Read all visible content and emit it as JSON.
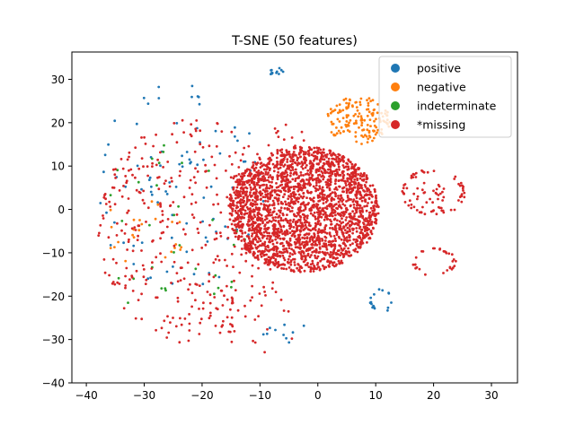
{
  "chart_data": {
    "type": "scatter",
    "title": "T-SNE (50 features)",
    "xlabel": "",
    "ylabel": "",
    "xlim": [
      -42.5,
      34.5
    ],
    "ylim": [
      -40,
      36.3
    ],
    "x_ticks": [
      -40,
      -30,
      -20,
      -10,
      0,
      10,
      20,
      30
    ],
    "y_ticks": [
      -40,
      -30,
      -20,
      -10,
      0,
      10,
      20,
      30
    ],
    "grid": false,
    "legend_position": "top-right",
    "colors": {
      "positive": "#1f77b4",
      "negative": "#ff7f0e",
      "indeterminate": "#2ca02c",
      "missing": "#d62728"
    },
    "series": [
      {
        "name": "positive",
        "color_key": "positive",
        "regions": [
          {
            "shape": "scatter",
            "cx": -24,
            "cy": 5,
            "rx": 15,
            "ry": 24,
            "n": 90
          },
          {
            "shape": "scatter",
            "cx": -6,
            "cy": -28,
            "rx": 4,
            "ry": 3,
            "n": 10
          },
          {
            "shape": "ring",
            "cx": 11,
            "cy": -21,
            "rx": 1.8,
            "ry": 2.5,
            "n": 16
          },
          {
            "shape": "scatter",
            "cx": -7,
            "cy": 32,
            "rx": 2,
            "ry": 1,
            "n": 12
          }
        ]
      },
      {
        "name": "negative",
        "color_key": "negative",
        "regions": [
          {
            "shape": "disk",
            "cx": 7,
            "cy": 20.5,
            "rx": 5.5,
            "ry": 5.5,
            "n": 150
          },
          {
            "shape": "scatter",
            "cx": -30,
            "cy": -5,
            "rx": 8,
            "ry": 8,
            "n": 25
          }
        ]
      },
      {
        "name": "indeterminate",
        "color_key": "indeterminate",
        "regions": [
          {
            "shape": "scatter",
            "cx": -25,
            "cy": -5,
            "rx": 14,
            "ry": 20,
            "n": 35
          }
        ]
      },
      {
        "name": "*missing",
        "color_key": "missing",
        "regions": [
          {
            "shape": "disk",
            "cx": -2.5,
            "cy": 0,
            "rx": 13,
            "ry": 14.5,
            "n": 2400
          },
          {
            "shape": "ring",
            "cx": 20,
            "cy": 4,
            "rx": 5,
            "ry": 5,
            "n": 55
          },
          {
            "shape": "disk",
            "cx": 20,
            "cy": 3,
            "rx": 3.5,
            "ry": 3.5,
            "n": 30
          },
          {
            "shape": "ring",
            "cx": 20,
            "cy": -12,
            "rx": 3.5,
            "ry": 3,
            "n": 30
          },
          {
            "shape": "scatter",
            "cx": -22,
            "cy": -5,
            "rx": 16,
            "ry": 26,
            "n": 380
          },
          {
            "shape": "scatter",
            "cx": -4,
            "cy": 15,
            "rx": 5,
            "ry": 5,
            "n": 20
          },
          {
            "shape": "scatter",
            "cx": -10,
            "cy": -25,
            "rx": 8,
            "ry": 8,
            "n": 25
          }
        ]
      }
    ]
  }
}
